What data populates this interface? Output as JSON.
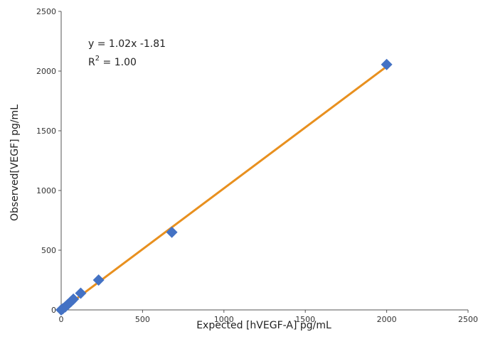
{
  "chart_data": {
    "type": "scatter",
    "xlabel": "Expected [hVEGF-A] pg/mL",
    "ylabel": "Observed[VEGF] pg/mL",
    "xlim": [
      0,
      2500
    ],
    "ylim": [
      0,
      2500
    ],
    "x_ticks": [
      0,
      500,
      1000,
      1500,
      2000,
      2500
    ],
    "y_ticks": [
      0,
      500,
      1000,
      1500,
      2000,
      2500
    ],
    "grid": false,
    "points": [
      {
        "x": 0,
        "y": 0
      },
      {
        "x": 10,
        "y": 10
      },
      {
        "x": 25,
        "y": 25
      },
      {
        "x": 40,
        "y": 45
      },
      {
        "x": 60,
        "y": 70
      },
      {
        "x": 75,
        "y": 90
      },
      {
        "x": 120,
        "y": 140
      },
      {
        "x": 230,
        "y": 250
      },
      {
        "x": 680,
        "y": 650
      },
      {
        "x": 2000,
        "y": 2055
      }
    ],
    "trendline": {
      "slope": 1.02,
      "intercept": -1.81,
      "x_range": [
        0,
        2000
      ]
    },
    "annotations": {
      "equation": "y = 1.02x -1.81",
      "r2_prefix": "R",
      "r2_sup": "2",
      "r2_suffix": " = 1.00"
    },
    "colors": {
      "points": "#4472c4",
      "trendline": "#e8901f",
      "axis": "#555555"
    }
  }
}
